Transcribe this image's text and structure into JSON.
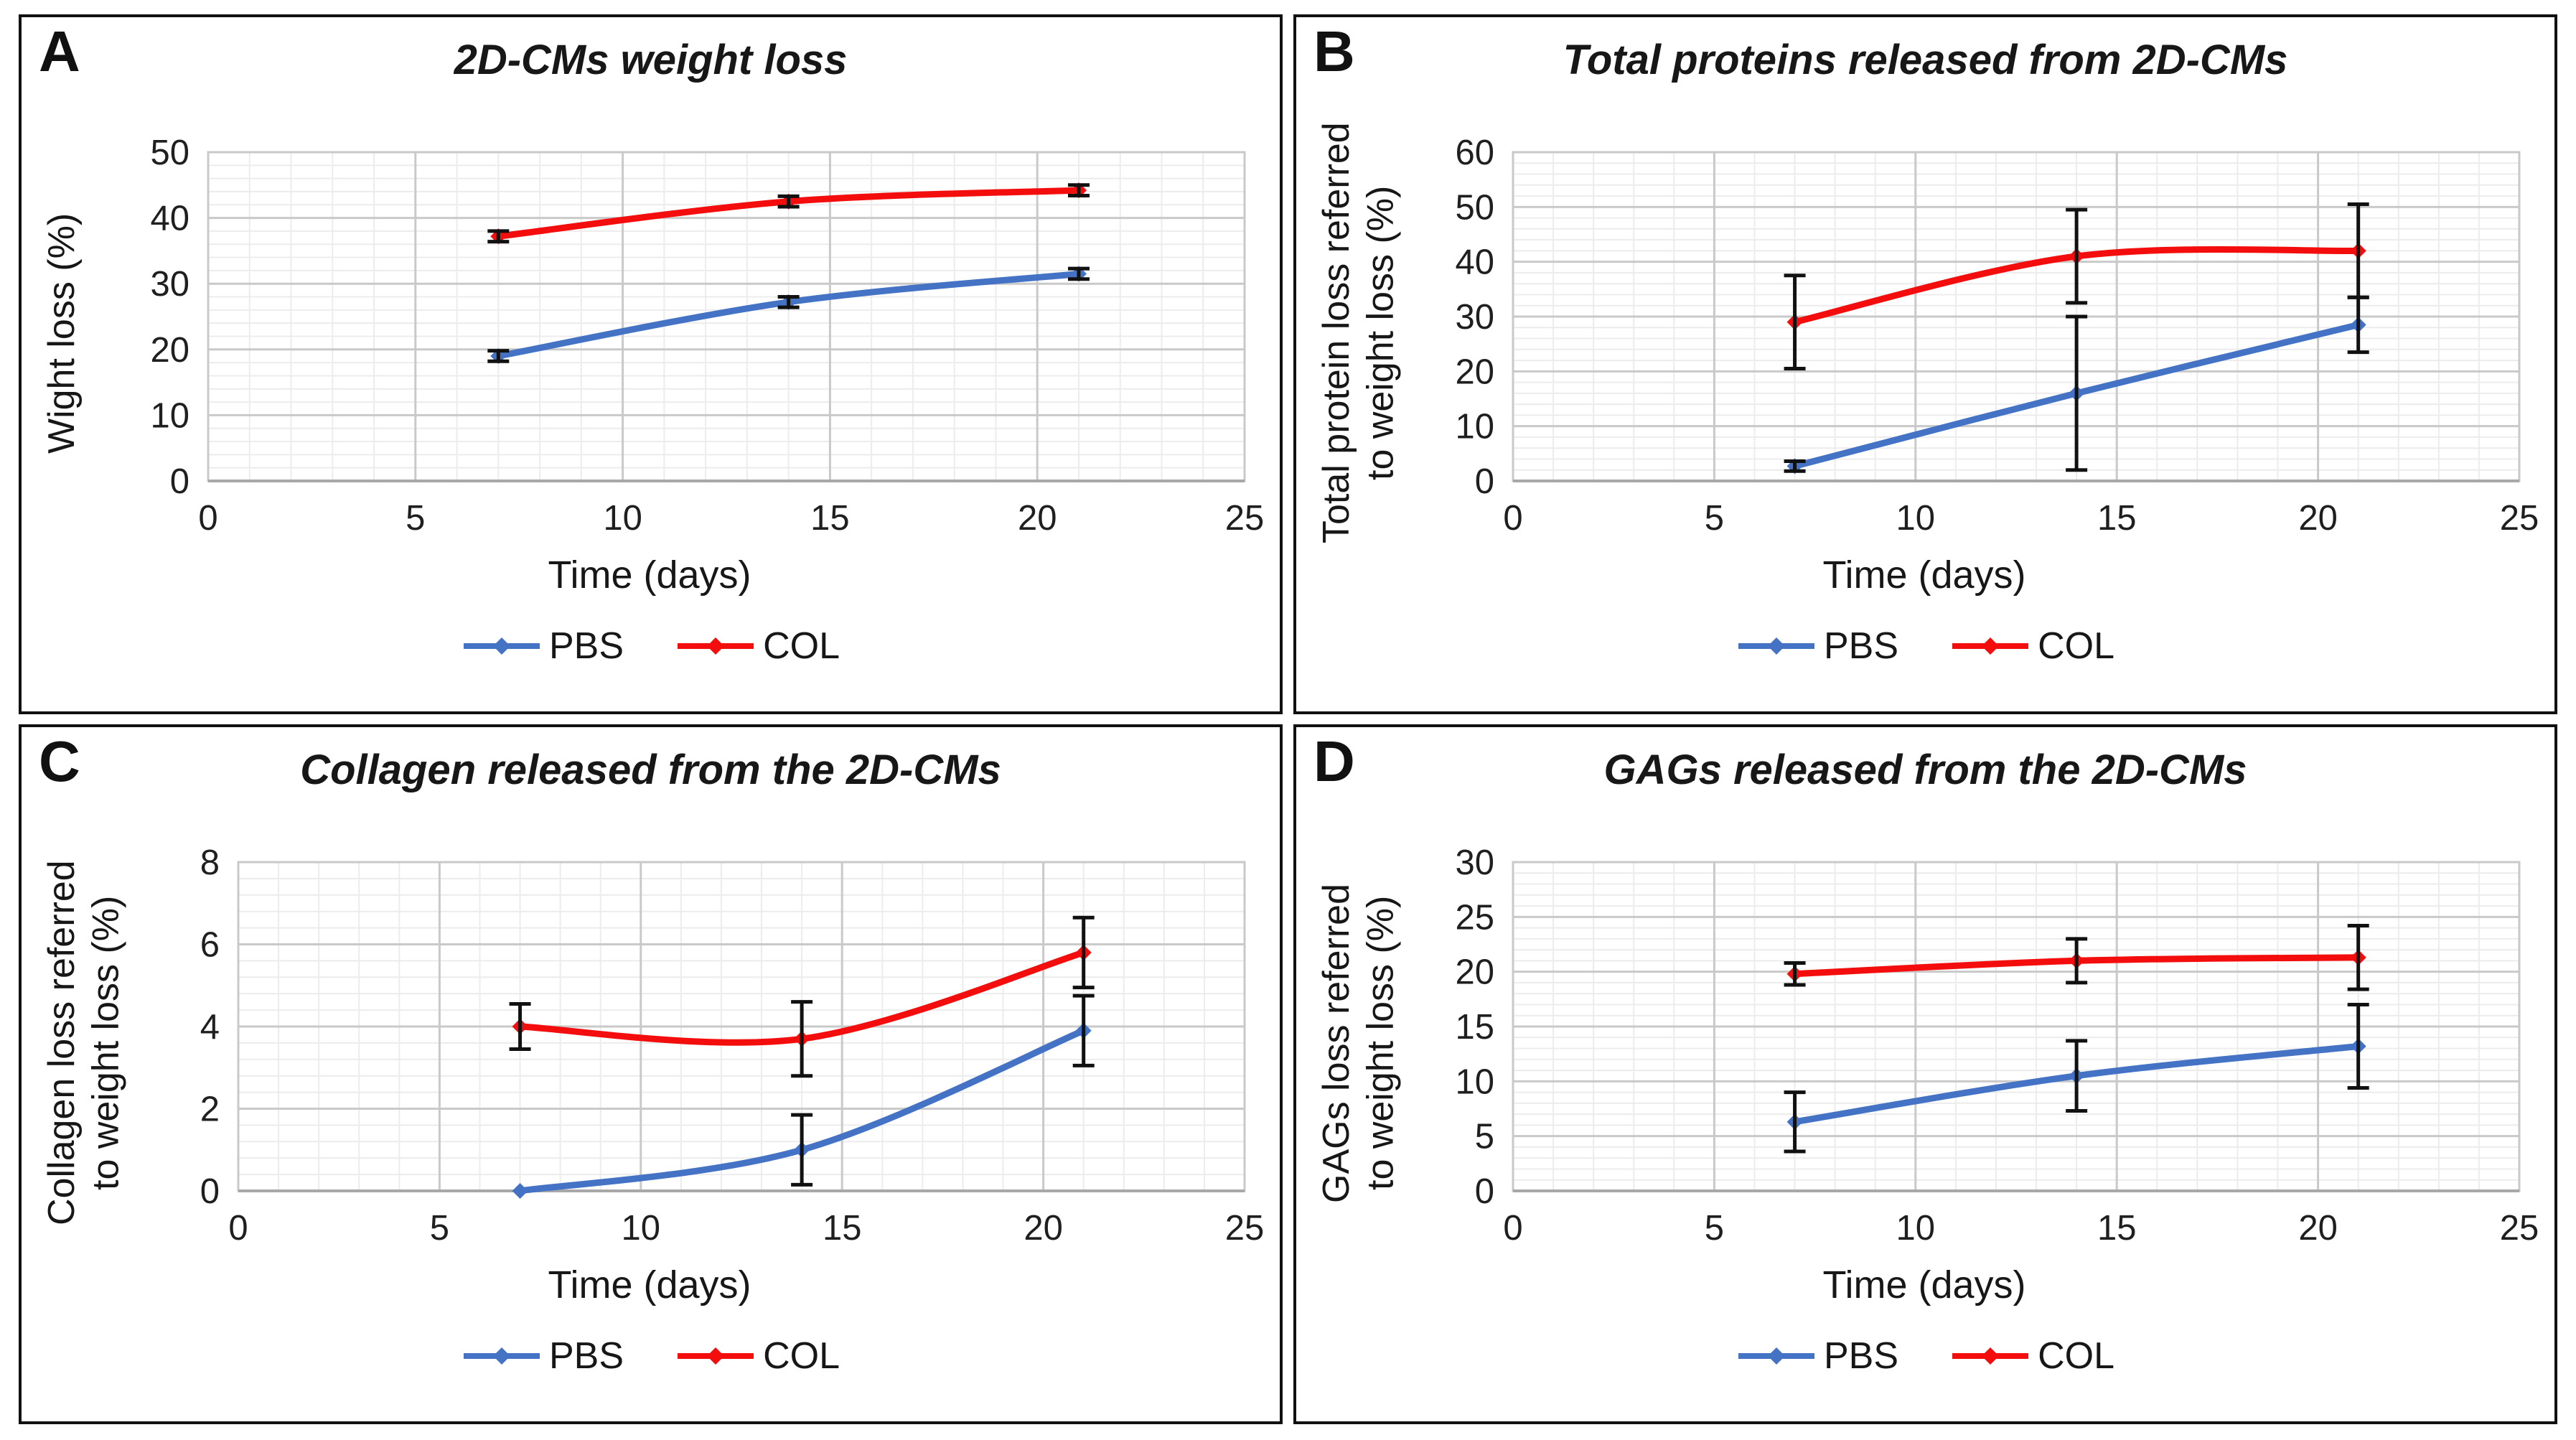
{
  "legend": {
    "items": [
      {
        "label": "PBS",
        "color": "#4472C4"
      },
      {
        "label": "COL",
        "color": "#F40D0D"
      }
    ],
    "position": "bottom"
  },
  "chart_data": [
    {
      "type": "line",
      "letter": "A",
      "title": "2D-CMs weight loss",
      "xlabel": "Time (days)",
      "ylabel_lines": [
        "Wight loss (%)"
      ],
      "xlim": [
        0,
        25
      ],
      "xticks": [
        0,
        5,
        10,
        15,
        20,
        25
      ],
      "x_minor_step": 1,
      "ylim": [
        0,
        50
      ],
      "yticks": [
        0,
        10,
        20,
        30,
        40,
        50
      ],
      "y_minor_step": 2,
      "grid": true,
      "legend_position": "bottom",
      "x": [
        7,
        14,
        21
      ],
      "series": [
        {
          "name": "PBS",
          "color": "#4472C4",
          "values": [
            19,
            27.2,
            31.5
          ],
          "errors": [
            0.8,
            0.8,
            0.8
          ]
        },
        {
          "name": "COL",
          "color": "#F40D0D",
          "values": [
            37.2,
            42.5,
            44.2
          ],
          "errors": [
            0.8,
            0.8,
            0.8
          ]
        }
      ]
    },
    {
      "type": "line",
      "letter": "B",
      "title": "Total proteins released from 2D-CMs",
      "xlabel": "Time (days)",
      "ylabel_lines": [
        "Total protein loss referred",
        "to weight loss (%)"
      ],
      "xlim": [
        0,
        25
      ],
      "xticks": [
        0,
        5,
        10,
        15,
        20,
        25
      ],
      "x_minor_step": 1,
      "ylim": [
        0,
        60
      ],
      "yticks": [
        0,
        10,
        20,
        30,
        40,
        50,
        60
      ],
      "y_minor_step": 2,
      "grid": true,
      "legend_position": "bottom",
      "x": [
        7,
        14,
        21
      ],
      "series": [
        {
          "name": "PBS",
          "color": "#4472C4",
          "values": [
            2.7,
            16,
            28.5
          ],
          "errors": [
            0.9,
            14,
            5
          ]
        },
        {
          "name": "COL",
          "color": "#F40D0D",
          "values": [
            29,
            41,
            42
          ],
          "errors": [
            8.5,
            8.5,
            8.5
          ]
        }
      ]
    },
    {
      "type": "line",
      "letter": "C",
      "title": "Collagen released from the 2D-CMs",
      "xlabel": "Time (days)",
      "ylabel_lines": [
        "Collagen loss referred",
        "to weight loss (%)"
      ],
      "xlim": [
        0,
        25
      ],
      "xticks": [
        0,
        5,
        10,
        15,
        20,
        25
      ],
      "x_minor_step": 1,
      "ylim": [
        0,
        8
      ],
      "yticks": [
        0,
        2,
        4,
        6,
        8
      ],
      "y_minor_step": 0.4,
      "grid": true,
      "legend_position": "bottom",
      "x": [
        7,
        14,
        21
      ],
      "series": [
        {
          "name": "PBS",
          "color": "#4472C4",
          "values": [
            0,
            1.0,
            3.9
          ],
          "errors": [
            0,
            0.85,
            0.85
          ]
        },
        {
          "name": "COL",
          "color": "#F40D0D",
          "values": [
            4.0,
            3.7,
            5.8
          ],
          "errors": [
            0.55,
            0.9,
            0.85
          ]
        }
      ]
    },
    {
      "type": "line",
      "letter": "D",
      "title": "GAGs released from the 2D-CMs",
      "xlabel": "Time (days)",
      "ylabel_lines": [
        "GAGs loss referred",
        "to weight loss (%)"
      ],
      "xlim": [
        0,
        25
      ],
      "xticks": [
        0,
        5,
        10,
        15,
        20,
        25
      ],
      "x_minor_step": 1,
      "ylim": [
        0,
        30
      ],
      "yticks": [
        0,
        5,
        10,
        15,
        20,
        25,
        30
      ],
      "y_minor_step": 1,
      "grid": true,
      "legend_position": "bottom",
      "x": [
        7,
        14,
        21
      ],
      "series": [
        {
          "name": "PBS",
          "color": "#4472C4",
          "values": [
            6.3,
            10.5,
            13.2
          ],
          "errors": [
            2.7,
            3.2,
            3.8
          ]
        },
        {
          "name": "COL",
          "color": "#F40D0D",
          "values": [
            19.8,
            21.0,
            21.3
          ],
          "errors": [
            1.0,
            2.0,
            2.9
          ]
        }
      ]
    }
  ],
  "style": {
    "grid_major_color": "#c9c9c9",
    "grid_minor_color": "#ececec",
    "axis_line_color": "#a8a8a8",
    "error_bar_color": "#111111",
    "text_color": "#1f1f1f"
  }
}
